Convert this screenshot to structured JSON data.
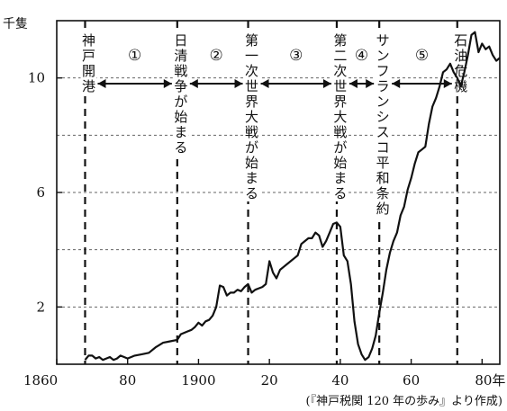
{
  "chart_data": {
    "type": "line",
    "title": "",
    "xlabel": "",
    "ylabel": "千隻",
    "xlim": [
      1860,
      1985
    ],
    "ylim": [
      0,
      12
    ],
    "y_gridlines": [
      2,
      4,
      6,
      8,
      10,
      12
    ],
    "grid": "horizontal-dashed",
    "x_tick_labels": [
      {
        "value": 1860,
        "label": "1860"
      },
      {
        "value": 1880,
        "label": "80"
      },
      {
        "value": 1900,
        "label": "1900"
      },
      {
        "value": 1920,
        "label": "20"
      },
      {
        "value": 1940,
        "label": "40"
      },
      {
        "value": 1960,
        "label": "60"
      },
      {
        "value": 1980,
        "label": "80年"
      }
    ],
    "y_tick_labels": [
      {
        "value": 2,
        "label": "2"
      },
      {
        "value": 6,
        "label": "6"
      },
      {
        "value": 10,
        "label": "10"
      }
    ],
    "series": [
      {
        "x": [
          1868,
          1869,
          1870,
          1871,
          1872,
          1873,
          1874,
          1875,
          1876,
          1877,
          1878,
          1879,
          1880,
          1882,
          1884,
          1886,
          1888,
          1890,
          1892,
          1894,
          1895,
          1896,
          1897,
          1898,
          1899,
          1900,
          1901,
          1902,
          1903,
          1904,
          1905,
          1906,
          1907,
          1908,
          1909,
          1910,
          1911,
          1912,
          1913,
          1914,
          1915,
          1916,
          1917,
          1918,
          1919,
          1920,
          1921,
          1922,
          1923,
          1924,
          1925,
          1926,
          1927,
          1928,
          1929,
          1930,
          1931,
          1932,
          1933,
          1934,
          1935,
          1936,
          1937,
          1938,
          1939,
          1940,
          1941,
          1942,
          1943,
          1944,
          1945,
          1946,
          1947,
          1948,
          1949,
          1950,
          1951,
          1952,
          1953,
          1954,
          1955,
          1956,
          1957,
          1958,
          1959,
          1960,
          1961,
          1962,
          1963,
          1964,
          1965,
          1966,
          1967,
          1968,
          1969,
          1970,
          1971,
          1972,
          1973,
          1974,
          1975,
          1976,
          1977,
          1978,
          1979,
          1980,
          1981,
          1982,
          1983,
          1984,
          1985
        ],
        "values": [
          0.15,
          0.3,
          0.3,
          0.2,
          0.25,
          0.15,
          0.2,
          0.25,
          0.15,
          0.2,
          0.3,
          0.25,
          0.2,
          0.3,
          0.35,
          0.4,
          0.6,
          0.75,
          0.8,
          0.85,
          1.05,
          1.1,
          1.15,
          1.2,
          1.3,
          1.45,
          1.35,
          1.5,
          1.55,
          1.7,
          2.0,
          2.75,
          2.7,
          2.4,
          2.5,
          2.5,
          2.6,
          2.55,
          2.7,
          2.8,
          2.5,
          2.6,
          2.65,
          2.7,
          2.8,
          3.6,
          3.2,
          3.0,
          3.3,
          3.4,
          3.5,
          3.6,
          3.7,
          3.8,
          4.2,
          4.3,
          4.4,
          4.4,
          4.6,
          4.5,
          4.1,
          4.3,
          4.6,
          4.9,
          4.95,
          4.8,
          3.8,
          3.6,
          2.8,
          1.5,
          0.7,
          0.35,
          0.15,
          0.25,
          0.55,
          1.0,
          1.8,
          2.5,
          3.3,
          3.9,
          4.3,
          4.6,
          5.2,
          5.5,
          6.1,
          6.5,
          7.0,
          7.4,
          7.5,
          7.6,
          8.4,
          9.0,
          9.3,
          9.7,
          10.2,
          10.3,
          10.5,
          10.2,
          10.0,
          9.7,
          10.2,
          10.8,
          11.5,
          11.6,
          10.9,
          11.2,
          11.0,
          11.1,
          10.8,
          10.6,
          10.7
        ]
      }
    ],
    "events": [
      {
        "x": 1868,
        "label": "神戸開港"
      },
      {
        "x": 1894,
        "label": "日清戦争が始まる"
      },
      {
        "x": 1914,
        "label": "第一次世界大戦が始まる"
      },
      {
        "x": 1939,
        "label": "第二次世界大戦が始まる"
      },
      {
        "x": 1951,
        "label": "サンフランシスコ平和条約"
      },
      {
        "x": 1973,
        "label": "石油危機"
      }
    ],
    "periods": [
      {
        "from": 1868,
        "to": 1894,
        "label": "①"
      },
      {
        "from": 1894,
        "to": 1914,
        "label": "②"
      },
      {
        "from": 1914,
        "to": 1939,
        "label": "③"
      },
      {
        "from": 1939,
        "to": 1951,
        "label": "④"
      },
      {
        "from": 1951,
        "to": 1973,
        "label": "⑤"
      }
    ],
    "source": "(『神戸税関 120 年の歩み』より作成)"
  }
}
